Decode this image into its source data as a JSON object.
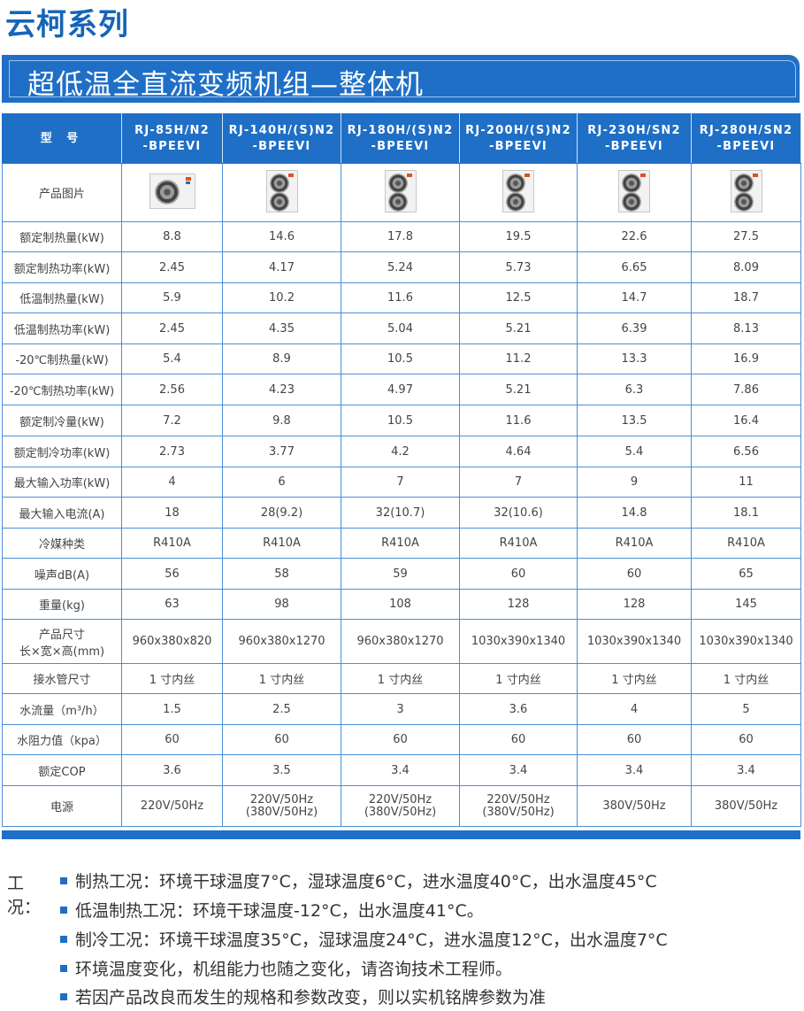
{
  "series_title": "云柯系列",
  "subtitle": "超低温全直流变频机组—整体机",
  "table": {
    "header_label": "型 号",
    "models": [
      [
        "RJ-85H/N2",
        "-BPEEVI"
      ],
      [
        "RJ-140H/(S)N2",
        "-BPEEVI"
      ],
      [
        "RJ-180H/(S)N2",
        "-BPEEVI"
      ],
      [
        "RJ-200H/(S)N2",
        "-BPEEVI"
      ],
      [
        "RJ-230H/SN2",
        "-BPEEVI"
      ],
      [
        "RJ-280H/SN2",
        "-BPEEVI"
      ]
    ],
    "photo_row_label": "产品图片",
    "photo_icons": [
      "outdoor-unit-single-fan-icon",
      "outdoor-unit-double-fan-icon",
      "outdoor-unit-double-fan-icon",
      "outdoor-unit-double-fan-icon",
      "outdoor-unit-double-fan-icon",
      "outdoor-unit-double-fan-icon"
    ],
    "rows": [
      {
        "label": [
          "额定制热量(kW)"
        ],
        "values": [
          [
            "8.8"
          ],
          [
            "14.6"
          ],
          [
            "17.8"
          ],
          [
            "19.5"
          ],
          [
            "22.6"
          ],
          [
            "27.5"
          ]
        ]
      },
      {
        "label": [
          "额定制热功率(kW)"
        ],
        "values": [
          [
            "2.45"
          ],
          [
            "4.17"
          ],
          [
            "5.24"
          ],
          [
            "5.73"
          ],
          [
            "6.65"
          ],
          [
            "8.09"
          ]
        ]
      },
      {
        "label": [
          "低温制热量(kW)"
        ],
        "values": [
          [
            "5.9"
          ],
          [
            "10.2"
          ],
          [
            "11.6"
          ],
          [
            "12.5"
          ],
          [
            "14.7"
          ],
          [
            "18.7"
          ]
        ]
      },
      {
        "label": [
          "低温制热功率(kW)"
        ],
        "values": [
          [
            "2.45"
          ],
          [
            "4.35"
          ],
          [
            "5.04"
          ],
          [
            "5.21"
          ],
          [
            "6.39"
          ],
          [
            "8.13"
          ]
        ]
      },
      {
        "label": [
          "-20℃制热量(kW)"
        ],
        "values": [
          [
            "5.4"
          ],
          [
            "8.9"
          ],
          [
            "10.5"
          ],
          [
            "11.2"
          ],
          [
            "13.3"
          ],
          [
            "16.9"
          ]
        ]
      },
      {
        "label": [
          "-20℃制热功率(kW)"
        ],
        "values": [
          [
            "2.56"
          ],
          [
            "4.23"
          ],
          [
            "4.97"
          ],
          [
            "5.21"
          ],
          [
            "6.3"
          ],
          [
            "7.86"
          ]
        ]
      },
      {
        "label": [
          "额定制冷量(kW)"
        ],
        "values": [
          [
            "7.2"
          ],
          [
            "9.8"
          ],
          [
            "10.5"
          ],
          [
            "11.6"
          ],
          [
            "13.5"
          ],
          [
            "16.4"
          ]
        ]
      },
      {
        "label": [
          "额定制冷功率(kW)"
        ],
        "values": [
          [
            "2.73"
          ],
          [
            "3.77"
          ],
          [
            "4.2"
          ],
          [
            "4.64"
          ],
          [
            "5.4"
          ],
          [
            "6.56"
          ]
        ]
      },
      {
        "label": [
          "最大输入功率(kW)"
        ],
        "values": [
          [
            "4"
          ],
          [
            "6"
          ],
          [
            "7"
          ],
          [
            "7"
          ],
          [
            "9"
          ],
          [
            "11"
          ]
        ]
      },
      {
        "label": [
          "最大输入电流(A)"
        ],
        "values": [
          [
            "18"
          ],
          [
            "28(9.2)"
          ],
          [
            "32(10.7)"
          ],
          [
            "32(10.6)"
          ],
          [
            "14.8"
          ],
          [
            "18.1"
          ]
        ]
      },
      {
        "label": [
          "冷媒种类"
        ],
        "values": [
          [
            "R410A"
          ],
          [
            "R410A"
          ],
          [
            "R410A"
          ],
          [
            "R410A"
          ],
          [
            "R410A"
          ],
          [
            "R410A"
          ]
        ]
      },
      {
        "label": [
          "噪声dB(A)"
        ],
        "values": [
          [
            "56"
          ],
          [
            "58"
          ],
          [
            "59"
          ],
          [
            "60"
          ],
          [
            "60"
          ],
          [
            "65"
          ]
        ]
      },
      {
        "label": [
          "重量(kg)"
        ],
        "values": [
          [
            "63"
          ],
          [
            "98"
          ],
          [
            "108"
          ],
          [
            "128"
          ],
          [
            "128"
          ],
          [
            "145"
          ]
        ]
      },
      {
        "label": [
          "产品尺寸",
          "长×宽×高(mm)"
        ],
        "values": [
          [
            "960x380x820"
          ],
          [
            "960x380x1270"
          ],
          [
            "960x380x1270"
          ],
          [
            "1030x390x1340"
          ],
          [
            "1030x390x1340"
          ],
          [
            "1030x390x1340"
          ]
        ]
      },
      {
        "label": [
          "接水管尺寸"
        ],
        "values": [
          [
            "1 寸内丝"
          ],
          [
            "1 寸内丝"
          ],
          [
            "1 寸内丝"
          ],
          [
            "1 寸内丝"
          ],
          [
            "1 寸内丝"
          ],
          [
            "1 寸内丝"
          ]
        ]
      },
      {
        "label": [
          "水流量（m³/h）"
        ],
        "values": [
          [
            "1.5"
          ],
          [
            "2.5"
          ],
          [
            "3"
          ],
          [
            "3.6"
          ],
          [
            "4"
          ],
          [
            "5"
          ]
        ]
      },
      {
        "label": [
          "水阻力值（kpa）"
        ],
        "values": [
          [
            "60"
          ],
          [
            "60"
          ],
          [
            "60"
          ],
          [
            "60"
          ],
          [
            "60"
          ],
          [
            "60"
          ]
        ]
      },
      {
        "label": [
          "额定COP"
        ],
        "values": [
          [
            "3.6"
          ],
          [
            "3.5"
          ],
          [
            "3.4"
          ],
          [
            "3.4"
          ],
          [
            "3.4"
          ],
          [
            "3.4"
          ]
        ]
      },
      {
        "label": [
          "电源"
        ],
        "values": [
          [
            "220V/50Hz"
          ],
          [
            "220V/50Hz",
            "(380V/50Hz)"
          ],
          [
            "220V/50Hz",
            "(380V/50Hz)"
          ],
          [
            "220V/50Hz",
            "(380V/50Hz)"
          ],
          [
            "380V/50Hz"
          ],
          [
            "380V/50Hz"
          ]
        ]
      }
    ]
  },
  "notes": {
    "label": "工况：",
    "items": [
      "制热工况：环境干球温度7°C，湿球温度6°C，进水温度40°C，出水温度45°C",
      "低温制热工况：环境干球温度-12°C，出水温度41°C。",
      "制冷工况：环境干球温度35°C，湿球温度24°C，进水温度12°C，出水温度7°C",
      "环境温度变化，机组能力也随之变化，请咨询技术工程师。",
      "若因产品改良而发生的规格和参数改变，则以实机铭牌参数为准"
    ]
  },
  "colors": {
    "brand_blue": "#1f6fc6",
    "title_blue": "#1565b8",
    "grid_blue": "#4a8fd6"
  }
}
